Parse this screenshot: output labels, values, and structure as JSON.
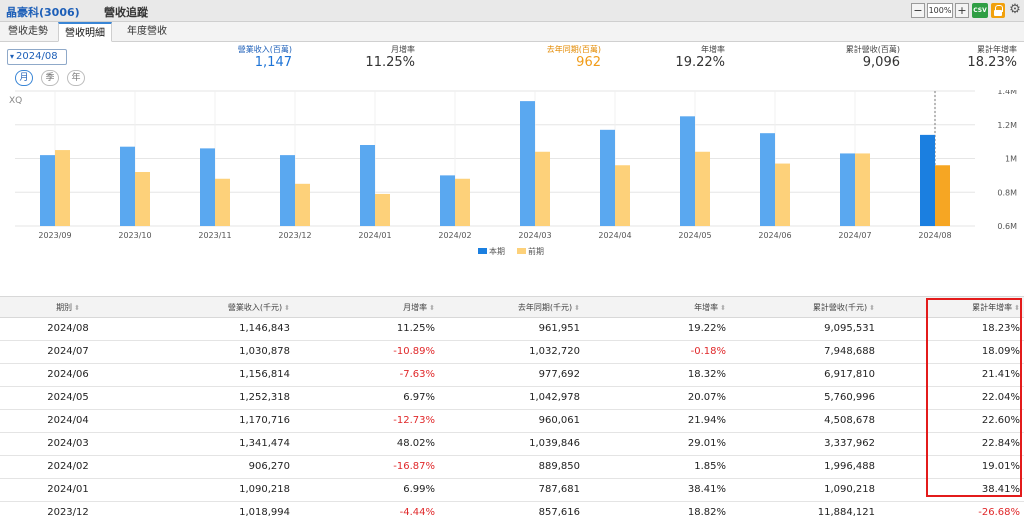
{
  "window": {
    "stock": "晶豪科(3006)",
    "title": "營收追蹤",
    "zoom": "100%",
    "minus": "−",
    "plus": "+",
    "csv_label": "CSV"
  },
  "tabs": [
    {
      "label": "營收走勢",
      "active": false
    },
    {
      "label": "營收明細",
      "active": true
    },
    {
      "label": "年度營收",
      "active": false
    }
  ],
  "selector": {
    "date": "2024/08",
    "periods": [
      "月",
      "季",
      "年"
    ],
    "active_period": "月"
  },
  "summary": {
    "revenue_label": "營業收入(百萬)",
    "revenue_value": "1,147",
    "mom_label": "月增率",
    "mom_value": "11.25%",
    "last_year_label": "去年同期(百萬)",
    "last_year_value": "962",
    "yoy_label": "年增率",
    "yoy_value": "19.22%",
    "cum_label": "累計營收(百萬)",
    "cum_value": "9,096",
    "cum_yoy_label": "累計年增率",
    "cum_yoy_value": "18.23%"
  },
  "chart_watermark": "XQ",
  "chart_data": {
    "type": "bar",
    "categories": [
      "2023/09",
      "2023/10",
      "2023/11",
      "2023/12",
      "2024/01",
      "2024/02",
      "2024/03",
      "2024/04",
      "2024/05",
      "2024/06",
      "2024/07",
      "2024/08"
    ],
    "series": [
      {
        "name": "本期",
        "values": [
          1.02,
          1.07,
          1.06,
          1.02,
          1.08,
          0.9,
          1.34,
          1.17,
          1.25,
          1.15,
          1.03,
          1.14
        ]
      },
      {
        "name": "前期",
        "values": [
          1.05,
          0.92,
          0.88,
          0.85,
          0.79,
          0.88,
          1.04,
          0.96,
          1.04,
          0.97,
          1.03,
          0.96
        ]
      }
    ],
    "ylim": [
      0.6,
      1.4
    ],
    "yticks": [
      "0.6M",
      "0.8M",
      "1M",
      "1.2M",
      "1.4M"
    ],
    "ytick_values": [
      0.6,
      0.8,
      1.0,
      1.2,
      1.4
    ],
    "colors": {
      "current": "#5aa8f0",
      "current_highlight": "#1b7fe0",
      "previous": "#fdd17a",
      "previous_highlight": "#f6a623",
      "grid": "#e6e6e6"
    },
    "legend_position": "bottom-center"
  },
  "table": {
    "headers": [
      "期別",
      "營業收入(千元)",
      "月增率",
      "去年同期(千元)",
      "年增率",
      "累計營收(千元)",
      "累計年增率"
    ],
    "rows": [
      [
        "2024/08",
        "1,146,843",
        "11.25%",
        "961,951",
        "19.22%",
        "9,095,531",
        "18.23%"
      ],
      [
        "2024/07",
        "1,030,878",
        "-10.89%",
        "1,032,720",
        "-0.18%",
        "7,948,688",
        "18.09%"
      ],
      [
        "2024/06",
        "1,156,814",
        "-7.63%",
        "977,692",
        "18.32%",
        "6,917,810",
        "21.41%"
      ],
      [
        "2024/05",
        "1,252,318",
        "6.97%",
        "1,042,978",
        "20.07%",
        "5,760,996",
        "22.04%"
      ],
      [
        "2024/04",
        "1,170,716",
        "-12.73%",
        "960,061",
        "21.94%",
        "4,508,678",
        "22.60%"
      ],
      [
        "2024/03",
        "1,341,474",
        "48.02%",
        "1,039,846",
        "29.01%",
        "3,337,962",
        "22.84%"
      ],
      [
        "2024/02",
        "906,270",
        "-16.87%",
        "889,850",
        "1.85%",
        "1,996,488",
        "19.01%"
      ],
      [
        "2024/01",
        "1,090,218",
        "6.99%",
        "787,681",
        "38.41%",
        "1,090,218",
        "38.41%"
      ],
      [
        "2023/12",
        "1,018,994",
        "-4.44%",
        "857,616",
        "18.82%",
        "11,884,121",
        "-26.68%"
      ]
    ]
  }
}
